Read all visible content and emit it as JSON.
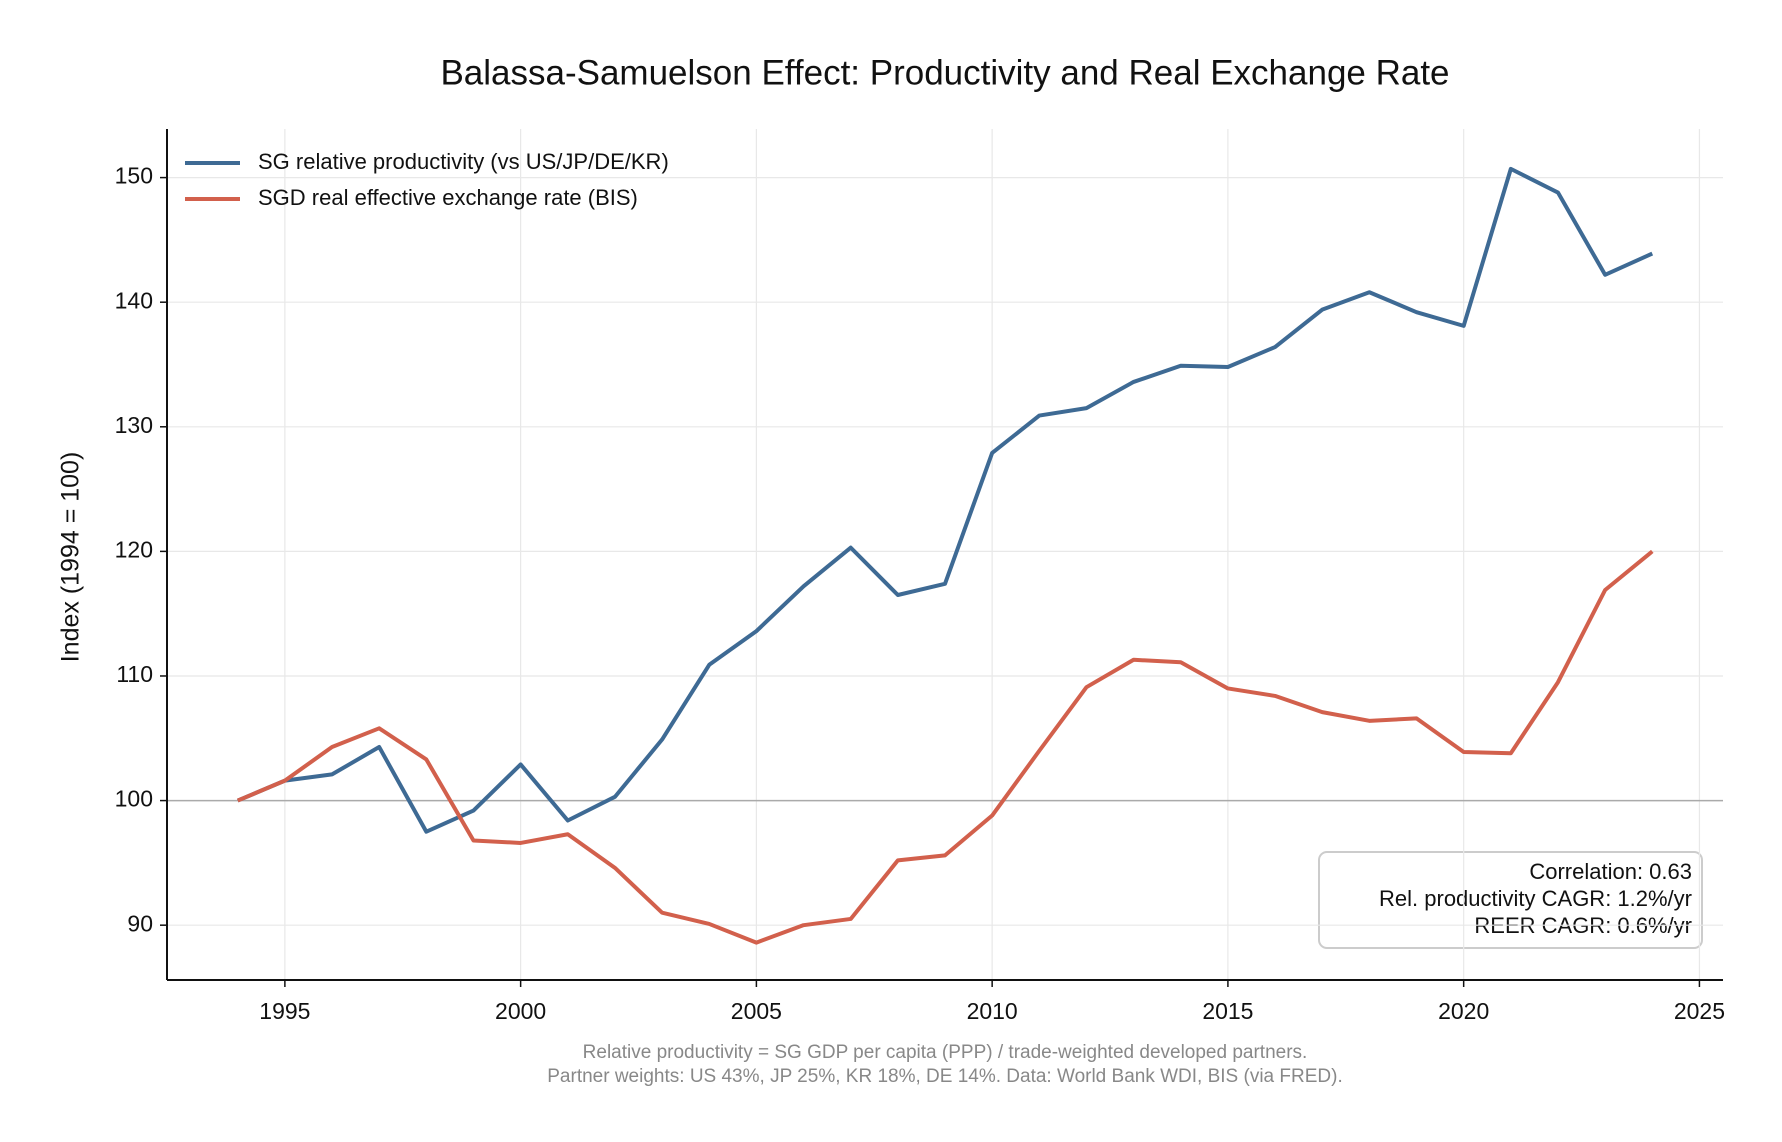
{
  "chart_data": {
    "type": "line",
    "title": "Balassa-Samuelson Effect: Productivity and Real Exchange Rate",
    "y_label": "Index (1994 = 100)",
    "x": [
      1994,
      1995,
      1996,
      1997,
      1998,
      1999,
      2000,
      2001,
      2002,
      2003,
      2004,
      2005,
      2006,
      2007,
      2008,
      2009,
      2010,
      2011,
      2012,
      2013,
      2014,
      2015,
      2016,
      2017,
      2018,
      2019,
      2020,
      2021,
      2022,
      2023,
      2024
    ],
    "series": [
      {
        "name": "SG relative productivity (vs US/JP/DE/KR)",
        "color": "#3e6a94",
        "values": [
          100,
          101.6,
          102.1,
          104.3,
          97.5,
          99.2,
          102.9,
          98.4,
          100.3,
          104.9,
          110.9,
          113.6,
          117.2,
          120.3,
          116.5,
          117.4,
          127.9,
          130.9,
          131.5,
          133.6,
          134.9,
          134.8,
          136.4,
          139.4,
          140.8,
          139.2,
          138.1,
          150.7,
          148.8,
          142.2,
          143.9
        ]
      },
      {
        "name": "SGD real effective exchange rate (BIS)",
        "color": "#d2604c",
        "values": [
          100,
          101.6,
          104.3,
          105.8,
          103.3,
          96.8,
          96.6,
          97.3,
          94.6,
          91.0,
          90.1,
          88.6,
          90.0,
          90.5,
          95.2,
          95.6,
          98.8,
          104.0,
          109.1,
          111.3,
          111.1,
          109.0,
          108.4,
          107.1,
          106.4,
          106.6,
          103.9,
          103.8,
          109.5,
          116.9,
          120.0
        ]
      }
    ],
    "xlim": [
      1992.5,
      2025.5
    ],
    "ylim": [
      85.6,
      153.9
    ],
    "xticks": [
      1995,
      2000,
      2005,
      2010,
      2015,
      2020,
      2025
    ],
    "yticks": [
      90,
      100,
      110,
      120,
      130,
      140,
      150
    ],
    "reference_line": 100,
    "grid": true,
    "legend": "upper left",
    "annotation": [
      "Correlation: 0.63",
      "Rel. productivity CAGR: 1.2%/yr",
      "REER CAGR: 0.6%/yr"
    ],
    "footnote": [
      "Relative productivity = SG GDP per capita (PPP) / trade-weighted developed partners.",
      "Partner weights: US 43%, JP 25%, KR 18%, DE 14%. Data: World Bank WDI, BIS (via FRED)."
    ]
  }
}
